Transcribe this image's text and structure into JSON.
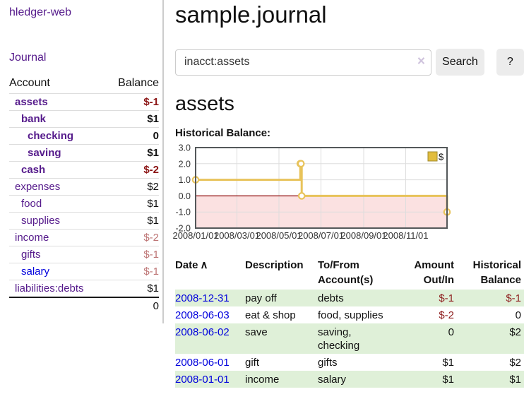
{
  "app": {
    "title": "hledger-web"
  },
  "sidebar": {
    "journal_link": "Journal",
    "accounts_table": {
      "headers": {
        "account": "Account",
        "balance": "Balance"
      },
      "rows": [
        {
          "name": "assets",
          "balance": "$-1",
          "depth": 1,
          "bold": true,
          "link_color": "purple",
          "balance_color": "dark-red"
        },
        {
          "name": "bank",
          "balance": "$1",
          "depth": 2,
          "bold": true,
          "link_color": "purple",
          "balance_color": "default"
        },
        {
          "name": "checking",
          "balance": "0",
          "depth": 3,
          "bold": true,
          "link_color": "purple",
          "balance_color": "default"
        },
        {
          "name": "saving",
          "balance": "$1",
          "depth": 3,
          "bold": true,
          "link_color": "purple",
          "balance_color": "default"
        },
        {
          "name": "cash",
          "balance": "$-2",
          "depth": 2,
          "bold": true,
          "link_color": "purple",
          "balance_color": "dark-red"
        },
        {
          "name": "expenses",
          "balance": "$2",
          "depth": 1,
          "bold": false,
          "link_color": "purple",
          "balance_color": "default"
        },
        {
          "name": "food",
          "balance": "$1",
          "depth": 2,
          "bold": false,
          "link_color": "purple",
          "balance_color": "default"
        },
        {
          "name": "supplies",
          "balance": "$1",
          "depth": 2,
          "bold": false,
          "link_color": "purple",
          "balance_color": "default"
        },
        {
          "name": "income",
          "balance": "$-2",
          "depth": 1,
          "bold": false,
          "link_color": "purple",
          "balance_color": "light-red"
        },
        {
          "name": "gifts",
          "balance": "$-1",
          "depth": 2,
          "bold": false,
          "link_color": "purple",
          "balance_color": "light-red"
        },
        {
          "name": "salary",
          "balance": "$-1",
          "depth": 2,
          "bold": false,
          "link_color": "blue",
          "balance_color": "light-red"
        },
        {
          "name": "liabilities:debts",
          "balance": "$1",
          "depth": 1,
          "bold": false,
          "link_color": "purple",
          "balance_color": "default"
        }
      ],
      "total": "0"
    }
  },
  "header": {
    "title": "sample.journal"
  },
  "search": {
    "value": "inacct:assets",
    "clear_icon": "×",
    "button_label": "Search",
    "help_label": "?"
  },
  "account_page": {
    "heading": "assets",
    "chart_label": "Historical Balance:"
  },
  "chart_data": {
    "type": "line",
    "style": "step-after",
    "title": "Historical Balance",
    "series": [
      {
        "name": "$",
        "x": [
          "2008-01-01",
          "2008-06-01",
          "2008-06-02",
          "2008-06-03",
          "2008-12-31"
        ],
        "values": [
          1,
          2,
          2,
          0,
          -1
        ]
      }
    ],
    "x_range": [
      "2008-01-01",
      "2008-12-31"
    ],
    "x_ticks": [
      "2008/01/01",
      "2008/03/01",
      "2008/05/01",
      "2008/07/01",
      "2008/09/01",
      "2008/11/01"
    ],
    "y_ticks": [
      "3.0",
      "2.0",
      "1.0",
      "0.0",
      "-1.0",
      "-2.0"
    ],
    "ylim": [
      -2,
      3
    ],
    "grid": true,
    "legend": {
      "label": "$",
      "position": "top-right"
    },
    "negative_region_shaded": true
  },
  "register": {
    "headers": {
      "date": "Date",
      "sort_indicator": "∧",
      "description": "Description",
      "accounts": "To/From Account(s)",
      "amount": "Amount Out/In",
      "balance": "Historical Balance"
    },
    "rows": [
      {
        "date": "2008-12-31",
        "description": "pay off",
        "accounts": "debts",
        "amount": "$-1",
        "amount_negative": true,
        "balance": "$-1",
        "balance_negative": true,
        "shaded": true
      },
      {
        "date": "2008-06-03",
        "description": "eat & shop",
        "accounts": "food, supplies",
        "amount": "$-2",
        "amount_negative": true,
        "balance": "0",
        "balance_negative": false,
        "shaded": false
      },
      {
        "date": "2008-06-02",
        "description": "save",
        "accounts": "saving,\nchecking",
        "amount": "0",
        "amount_negative": false,
        "balance": "$2",
        "balance_negative": false,
        "shaded": true
      },
      {
        "date": "2008-06-01",
        "description": "gift",
        "accounts": "gifts",
        "amount": "$1",
        "amount_negative": false,
        "balance": "$2",
        "balance_negative": false,
        "shaded": false
      },
      {
        "date": "2008-01-01",
        "description": "income",
        "accounts": "salary",
        "amount": "$1",
        "amount_negative": false,
        "balance": "$1",
        "balance_negative": false,
        "shaded": true
      }
    ]
  },
  "colors": {
    "link_purple": "#551a8b",
    "link_blue": "#0000dd",
    "neg_strong": "#8b1414",
    "neg_light": "#bd7474",
    "neg_table": "#8f2020",
    "row_shaded": "#dff0d8",
    "chart_line": "#e8c35a",
    "chart_marker_fill": "#ffffff",
    "chart_negative_fill": "#fbe1e1",
    "chart_zero_line": "#8b0000",
    "chart_grid": "#dddddd",
    "chart_border": "#54585a",
    "legend_fill": "#e2bd3f",
    "legend_stroke": "#a08a2e"
  }
}
